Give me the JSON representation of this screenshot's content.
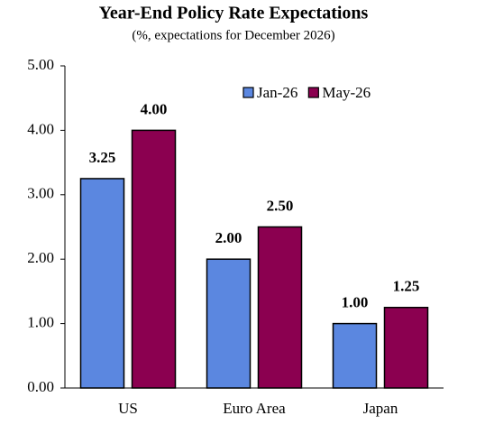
{
  "chart_data": {
    "type": "bar",
    "title": "Year-End Policy Rate Expectations",
    "subtitle": "(%, expectations for December 2026)",
    "categories": [
      "US",
      "Euro Area",
      "Japan"
    ],
    "series": [
      {
        "name": "Jan-26",
        "color": "#5b87e0",
        "values": [
          3.25,
          2.0,
          1.0
        ],
        "value_labels": [
          "3.25",
          "2.00",
          "1.00"
        ]
      },
      {
        "name": "May-26",
        "color": "#8b0050",
        "values": [
          4.0,
          2.5,
          1.25
        ],
        "value_labels": [
          "4.00",
          "2.50",
          "1.25"
        ]
      }
    ],
    "ylim": [
      0,
      5
    ],
    "yticks": [
      {
        "value": 0,
        "label": "0.00"
      },
      {
        "value": 1,
        "label": "1.00"
      },
      {
        "value": 2,
        "label": "2.00"
      },
      {
        "value": 3,
        "label": "3.00"
      },
      {
        "value": 4,
        "label": "4.00"
      },
      {
        "value": 5,
        "label": "5.00"
      }
    ],
    "grid": false,
    "legend": "top-right"
  }
}
